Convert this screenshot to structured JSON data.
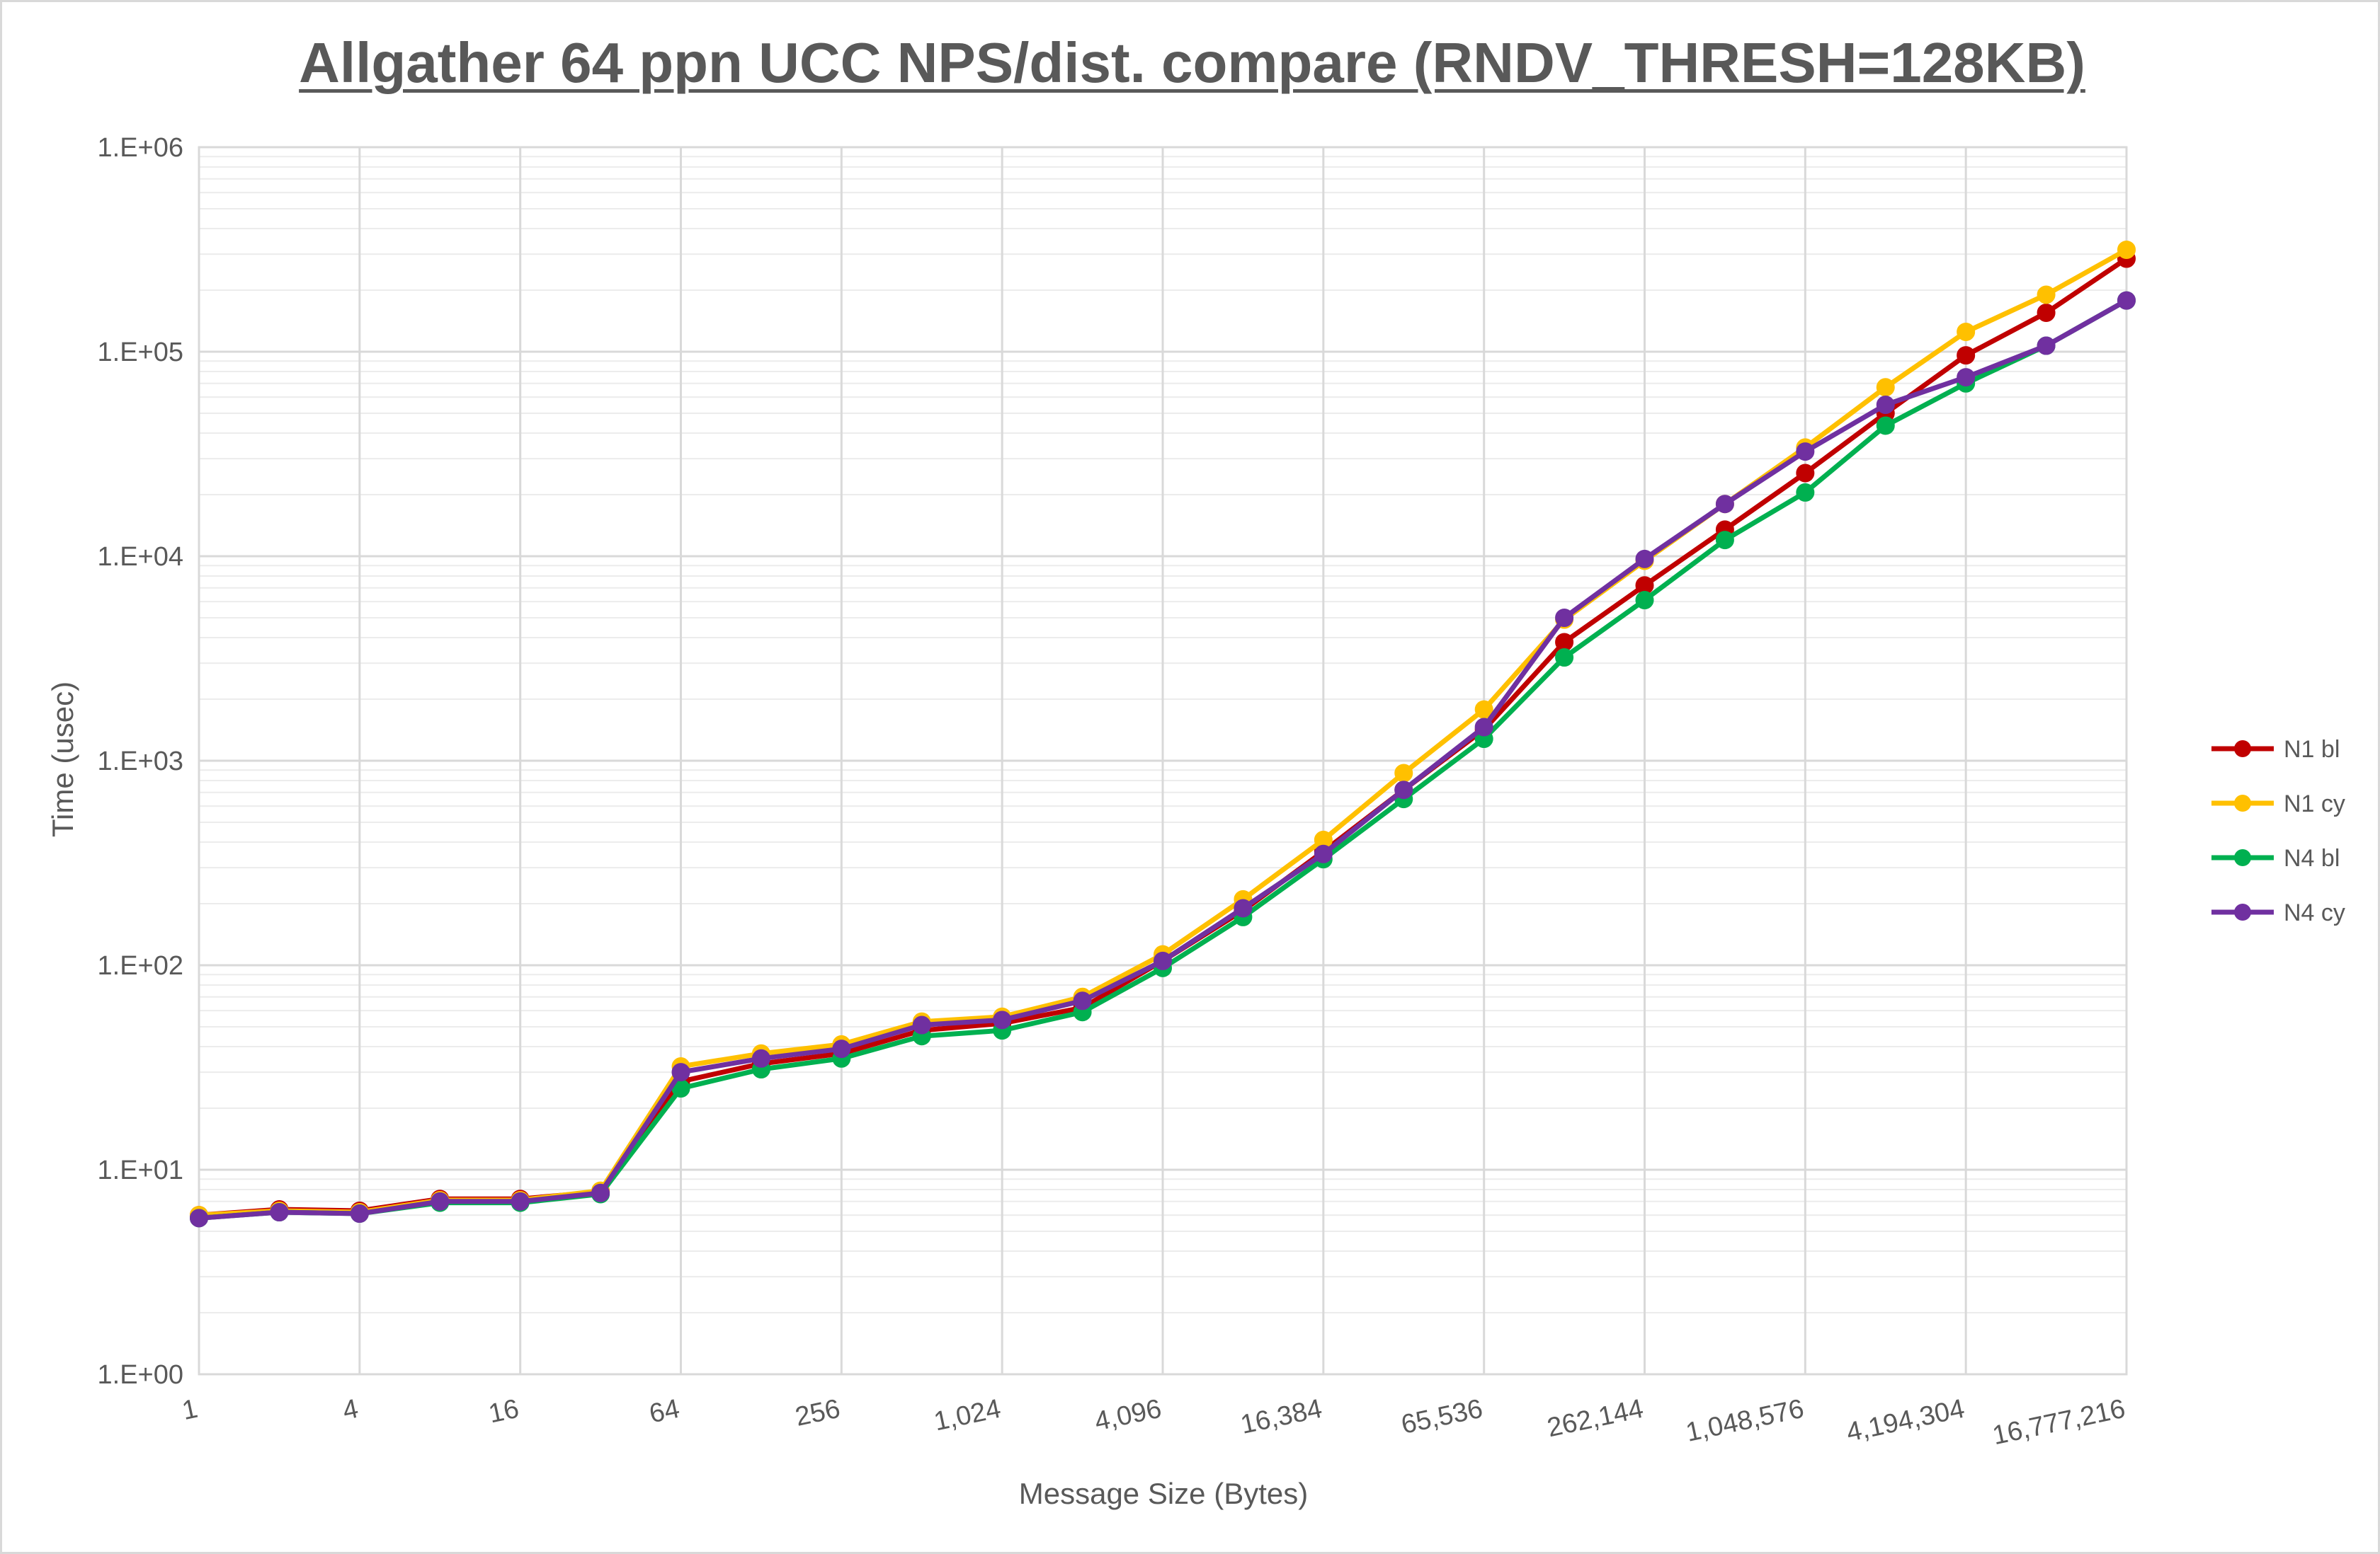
{
  "chart_data": {
    "type": "line",
    "title": "Allgather 64 ppn UCC NPS/dist. compare (RNDV_THRESH=128KB)",
    "xlabel": "Message Size (Bytes)",
    "ylabel": "Time (usec)",
    "x_scale": "log2",
    "y_scale": "log10",
    "ylim": [
      1,
      1000000
    ],
    "grid": true,
    "legend_position": "right",
    "x": [
      1,
      2,
      4,
      8,
      16,
      32,
      64,
      128,
      256,
      512,
      1024,
      2048,
      4096,
      8192,
      16384,
      32768,
      65536,
      131072,
      262144,
      524288,
      1048576,
      2097152,
      4194304,
      8388608,
      16777216
    ],
    "x_tick_labels": [
      {
        "value": 1,
        "label": "1"
      },
      {
        "value": 4,
        "label": "4"
      },
      {
        "value": 16,
        "label": "16"
      },
      {
        "value": 64,
        "label": "64"
      },
      {
        "value": 256,
        "label": "256"
      },
      {
        "value": 1024,
        "label": "1,024"
      },
      {
        "value": 4096,
        "label": "4,096"
      },
      {
        "value": 16384,
        "label": "16,384"
      },
      {
        "value": 65536,
        "label": "65,536"
      },
      {
        "value": 262144,
        "label": "262,144"
      },
      {
        "value": 1048576,
        "label": "1,048,576"
      },
      {
        "value": 4194304,
        "label": "4,194,304"
      },
      {
        "value": 16777216,
        "label": "16,777,216"
      }
    ],
    "y_tick_labels": [
      {
        "value": 1,
        "label": "1.E+00"
      },
      {
        "value": 10,
        "label": "1.E+01"
      },
      {
        "value": 100,
        "label": "1.E+02"
      },
      {
        "value": 1000,
        "label": "1.E+03"
      },
      {
        "value": 10000,
        "label": "1.E+04"
      },
      {
        "value": 100000,
        "label": "1.E+05"
      },
      {
        "value": 1000000,
        "label": "1.E+06"
      }
    ],
    "series": [
      {
        "name": "N1 bl",
        "color": "#c00000",
        "values": [
          6.0,
          6.4,
          6.3,
          7.2,
          7.2,
          7.8,
          27,
          33,
          37,
          48,
          52,
          62,
          105,
          185,
          360,
          720,
          1420,
          3800,
          7200,
          13500,
          25500,
          50000,
          96000,
          155000,
          285000
        ]
      },
      {
        "name": "N1 cy",
        "color": "#ffc000",
        "values": [
          6.0,
          6.3,
          6.2,
          7.1,
          7.1,
          7.9,
          32,
          37,
          41,
          53,
          56,
          70,
          113,
          210,
          410,
          870,
          1780,
          4900,
          9500,
          18000,
          34000,
          67000,
          125000,
          190000,
          315000
        ]
      },
      {
        "name": "N4 bl",
        "color": "#00b050",
        "values": [
          5.8,
          6.2,
          6.1,
          6.9,
          6.9,
          7.6,
          25,
          31,
          35,
          45,
          48,
          59,
          97,
          172,
          330,
          650,
          1280,
          3200,
          6100,
          12000,
          20500,
          43500,
          70000,
          107000,
          178000
        ]
      },
      {
        "name": "N4 cy",
        "color": "#7030a0",
        "values": [
          5.8,
          6.2,
          6.1,
          7.0,
          7.0,
          7.7,
          30,
          35,
          39,
          51,
          54,
          67,
          105,
          190,
          350,
          720,
          1460,
          5000,
          9700,
          18000,
          32500,
          55000,
          75000,
          107000,
          178000
        ]
      }
    ]
  }
}
